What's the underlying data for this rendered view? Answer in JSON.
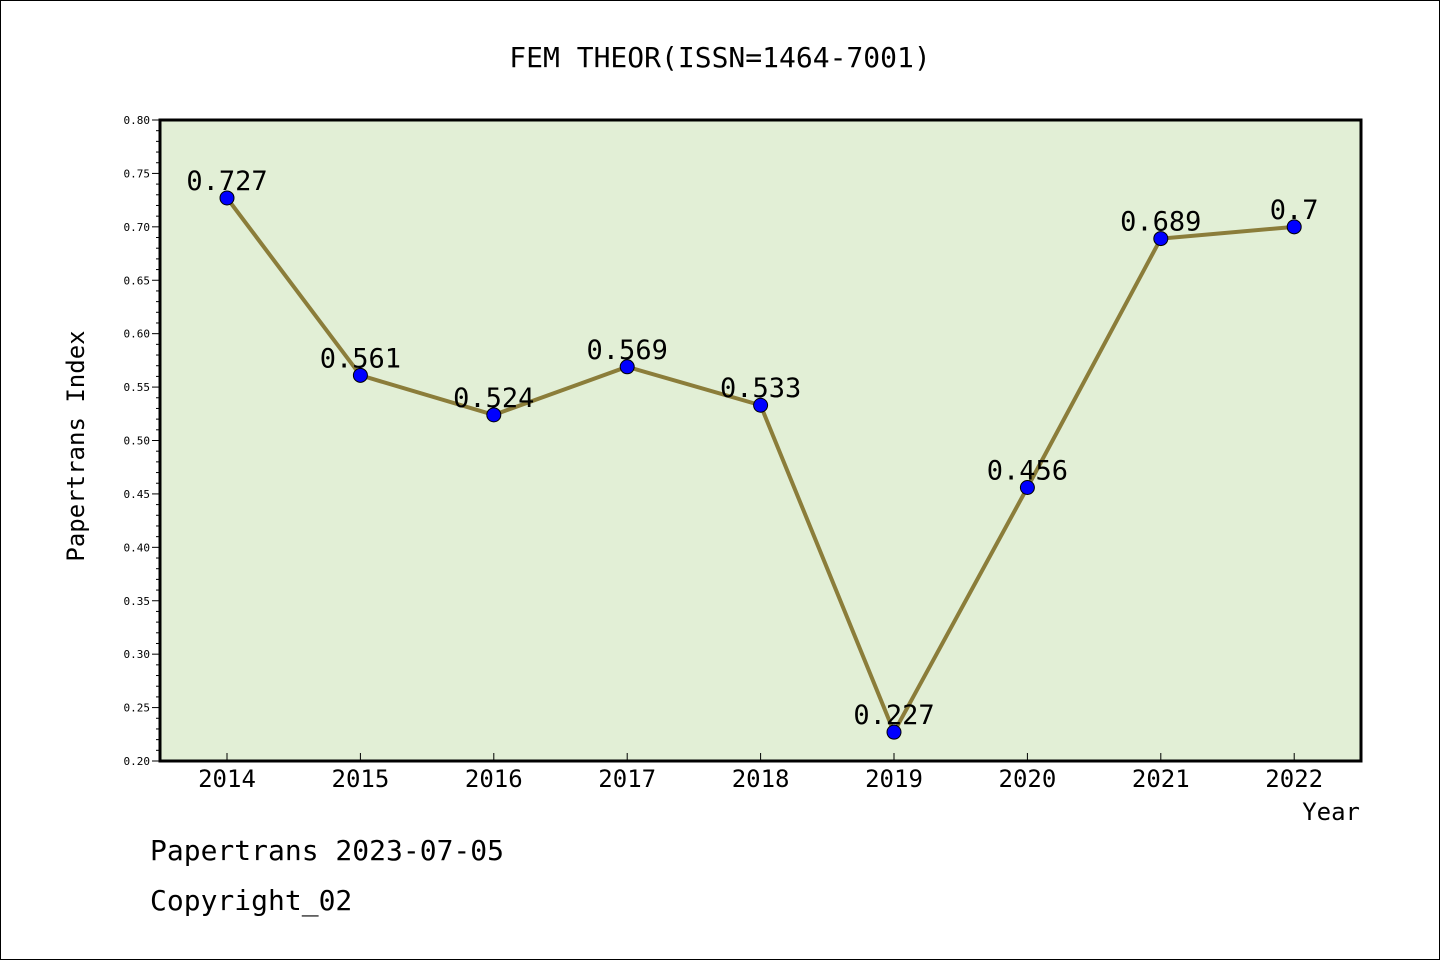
{
  "chart_data": {
    "type": "line",
    "title": "FEM THEOR(ISSN=1464-7001)",
    "xlabel": "Year",
    "ylabel": "Papertrans Index",
    "categories": [
      "2014",
      "2015",
      "2016",
      "2017",
      "2018",
      "2019",
      "2020",
      "2021",
      "2022"
    ],
    "values": [
      0.727,
      0.561,
      0.524,
      0.569,
      0.533,
      0.227,
      0.456,
      0.689,
      0.7
    ],
    "data_labels": [
      "0.727",
      "0.561",
      "0.524",
      "0.569",
      "0.533",
      "0.227",
      "0.456",
      "0.689",
      "0.7"
    ],
    "ylim": [
      0.2,
      0.8
    ],
    "yticks": [
      "0.20",
      "0.25",
      "0.30",
      "0.35",
      "0.40",
      "0.45",
      "0.50",
      "0.55",
      "0.60",
      "0.65",
      "0.70",
      "0.75",
      "0.80"
    ],
    "grid": false,
    "colors": {
      "plot_background": "#e2efd6",
      "line": "#8b7d3a",
      "marker": "#0000ff"
    }
  },
  "footer": {
    "source": "Papertrans 2023-07-05",
    "copyright": "Copyright_02"
  }
}
